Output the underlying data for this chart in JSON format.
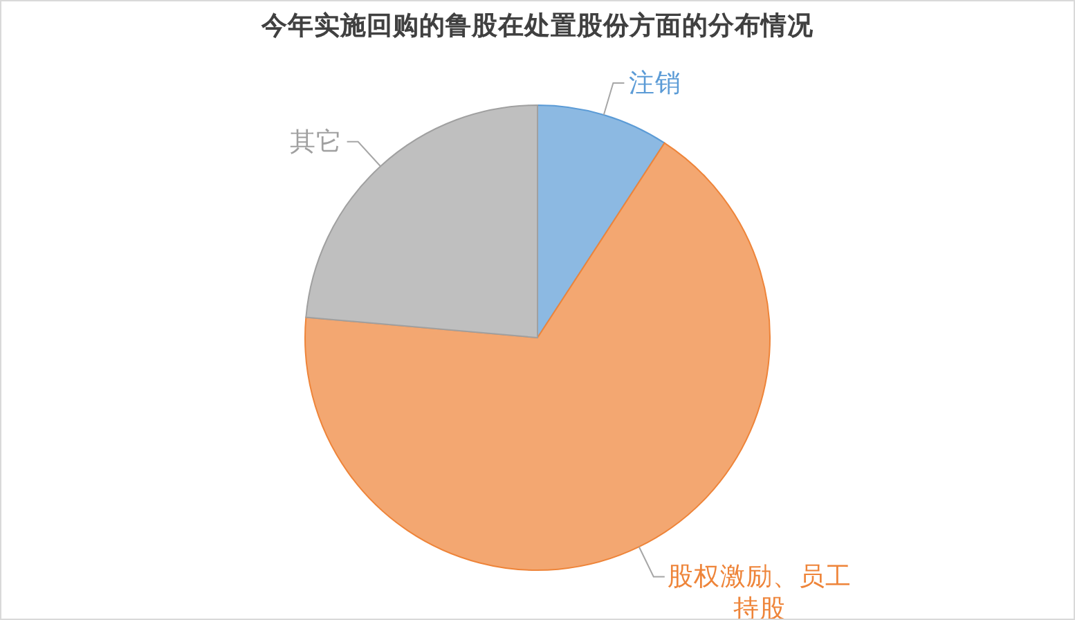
{
  "chart_data": {
    "type": "pie",
    "title": "今年实施回购的鲁股在处置股份方面的分布情况",
    "categories": [
      "注销",
      "股权激励、员工持股",
      "其它"
    ],
    "values": [
      9.2,
      67.2,
      23.6
    ],
    "colors": [
      "#8cb9e2",
      "#f3a771",
      "#bfbfbf"
    ]
  }
}
